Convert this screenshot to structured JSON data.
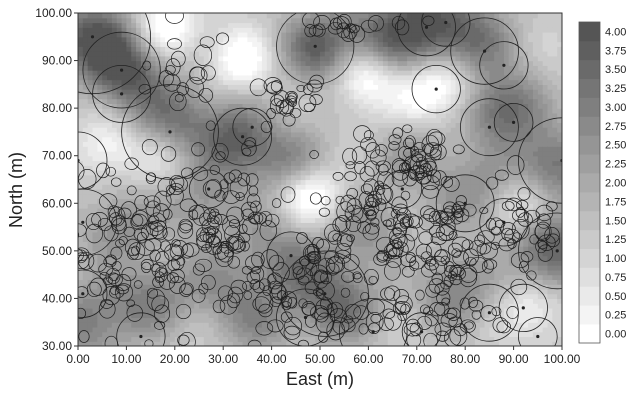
{
  "chart_data": {
    "type": "heatmap",
    "subtype": "filled-contour map with overlaid circles",
    "title": "",
    "xlabel": "East (m)",
    "ylabel": "North (m)",
    "xlim": [
      0,
      100
    ],
    "ylim": [
      30,
      100
    ],
    "x_ticks": [
      "0.00",
      "10.00",
      "20.00",
      "30.00",
      "40.00",
      "50.00",
      "60.00",
      "70.00",
      "80.00",
      "90.00",
      "100.00"
    ],
    "y_ticks": [
      "30.00",
      "40.00",
      "50.00",
      "60.00",
      "70.00",
      "80.00",
      "90.00",
      "100.00"
    ],
    "colorbar": {
      "levels": [
        "0.00",
        "0.25",
        "0.50",
        "0.75",
        "1.00",
        "1.25",
        "1.50",
        "1.75",
        "2.00",
        "2.25",
        "2.50",
        "2.75",
        "3.00",
        "3.25",
        "3.50",
        "3.75",
        "4.00"
      ],
      "min": 0,
      "max": 4.25,
      "palette": "grayscale",
      "low_color": "#ffffff",
      "high_color": "#4a4a4a"
    },
    "grid": false,
    "field_peaks": [
      {
        "x": 3,
        "y": 95,
        "v": 3.9
      },
      {
        "x": 10,
        "y": 88,
        "v": 3.9
      },
      {
        "x": 20,
        "y": 78,
        "v": 3.3
      },
      {
        "x": 33,
        "y": 73,
        "v": 3.8
      },
      {
        "x": 45,
        "y": 68,
        "v": 2.8
      },
      {
        "x": 50,
        "y": 93,
        "v": 3.8
      },
      {
        "x": 63,
        "y": 95,
        "v": 3.2
      },
      {
        "x": 72,
        "y": 98,
        "v": 3.6
      },
      {
        "x": 82,
        "y": 95,
        "v": 3.2
      },
      {
        "x": 88,
        "y": 80,
        "v": 3.7
      },
      {
        "x": 98,
        "y": 68,
        "v": 3.5
      },
      {
        "x": 98,
        "y": 50,
        "v": 3.9
      },
      {
        "x": 82,
        "y": 62,
        "v": 2.7
      },
      {
        "x": 78,
        "y": 42,
        "v": 3.0
      },
      {
        "x": 48,
        "y": 45,
        "v": 2.9
      },
      {
        "x": 55,
        "y": 38,
        "v": 3.1
      },
      {
        "x": 60,
        "y": 55,
        "v": 2.6
      },
      {
        "x": 8,
        "y": 55,
        "v": 2.7
      },
      {
        "x": 15,
        "y": 40,
        "v": 3.0
      },
      {
        "x": 25,
        "y": 60,
        "v": 2.6
      },
      {
        "x": 30,
        "y": 43,
        "v": 2.6
      },
      {
        "x": 40,
        "y": 52,
        "v": 2.4
      },
      {
        "x": 2,
        "y": 35,
        "v": 3.2
      },
      {
        "x": 70,
        "y": 70,
        "v": 2.4
      },
      {
        "x": 38,
        "y": 35,
        "v": 2.6
      }
    ],
    "field_lows": [
      {
        "x": 18,
        "y": 97,
        "v": -1.8
      },
      {
        "x": 34,
        "y": 90,
        "v": -1.6
      },
      {
        "x": 59,
        "y": 87,
        "v": -1.9
      },
      {
        "x": 76,
        "y": 85,
        "v": -1.4
      },
      {
        "x": 48,
        "y": 62,
        "v": -2.2
      },
      {
        "x": 6,
        "y": 72,
        "v": -1.2
      },
      {
        "x": 93,
        "y": 60,
        "v": -1.4
      },
      {
        "x": 94,
        "y": 38,
        "v": -1.1
      },
      {
        "x": 18,
        "y": 70,
        "v": -0.8
      },
      {
        "x": 70,
        "y": 82,
        "v": -1.0
      }
    ],
    "large_circles": [
      {
        "x": 3,
        "y": 95,
        "r": 12
      },
      {
        "x": 9,
        "y": 88,
        "r": 8
      },
      {
        "x": 9,
        "y": 83,
        "r": 6
      },
      {
        "x": 19,
        "y": 75,
        "r": 10
      },
      {
        "x": 34,
        "y": 74,
        "r": 6
      },
      {
        "x": 36,
        "y": 76,
        "r": 4
      },
      {
        "x": 49,
        "y": 93,
        "r": 8
      },
      {
        "x": 72,
        "y": 97,
        "r": 6
      },
      {
        "x": 76,
        "y": 98,
        "r": 5
      },
      {
        "x": 84,
        "y": 92,
        "r": 7
      },
      {
        "x": 88,
        "y": 89,
        "r": 5
      },
      {
        "x": 74,
        "y": 84,
        "r": 5
      },
      {
        "x": 85,
        "y": 76,
        "r": 6
      },
      {
        "x": 90,
        "y": 77,
        "r": 4
      },
      {
        "x": 100,
        "y": 69,
        "r": 9
      },
      {
        "x": 99,
        "y": 50,
        "r": 8
      },
      {
        "x": 80,
        "y": 60,
        "r": 6
      },
      {
        "x": 88,
        "y": 56,
        "r": 5
      },
      {
        "x": 51,
        "y": 41,
        "r": 9
      },
      {
        "x": 44,
        "y": 49,
        "r": 5
      },
      {
        "x": 47,
        "y": 36,
        "r": 6
      },
      {
        "x": 61,
        "y": 33,
        "r": 7
      },
      {
        "x": 71,
        "y": 33,
        "r": 4
      },
      {
        "x": 85,
        "y": 37,
        "r": 6
      },
      {
        "x": 92,
        "y": 38,
        "r": 5
      },
      {
        "x": 1,
        "y": 41,
        "r": 5
      },
      {
        "x": 1,
        "y": 56,
        "r": 7
      },
      {
        "x": 0,
        "y": 69,
        "r": 6
      },
      {
        "x": 13,
        "y": 32,
        "r": 5
      },
      {
        "x": 27,
        "y": 63,
        "r": 4
      },
      {
        "x": 67,
        "y": 63,
        "r": 4
      },
      {
        "x": 95,
        "y": 32,
        "r": 4
      }
    ]
  }
}
